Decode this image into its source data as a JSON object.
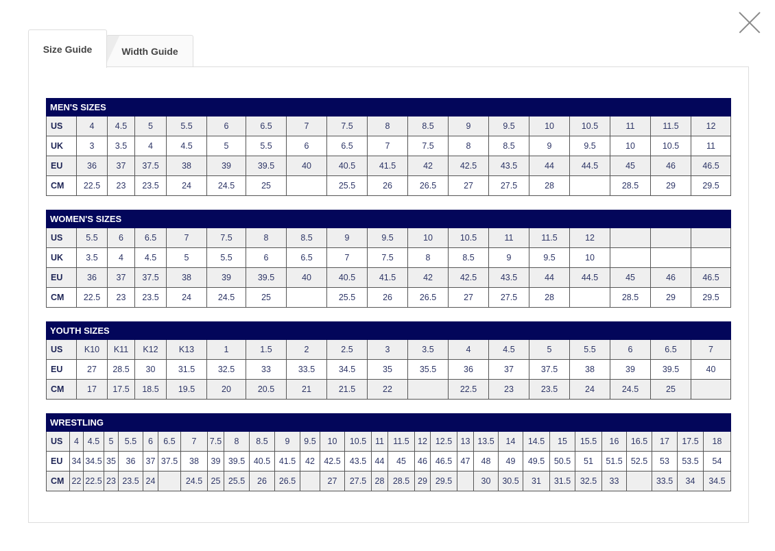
{
  "tabs": [
    {
      "label": "Size Guide",
      "active": true
    },
    {
      "label": "Width Guide",
      "active": false
    }
  ],
  "colors": {
    "header_bg": "#03065a",
    "stripe": "#efefef",
    "text": "#2d3566"
  },
  "tables": [
    {
      "title": "MEN'S SIZES",
      "rows": [
        {
          "label": "US",
          "values": [
            "4",
            "4.5",
            "5",
            "5.5",
            "6",
            "6.5",
            "7",
            "7.5",
            "8",
            "8.5",
            "9",
            "9.5",
            "10",
            "10.5",
            "11",
            "11.5",
            "12"
          ]
        },
        {
          "label": "UK",
          "values": [
            "3",
            "3.5",
            "4",
            "4.5",
            "5",
            "5.5",
            "6",
            "6.5",
            "7",
            "7.5",
            "8",
            "8.5",
            "9",
            "9.5",
            "10",
            "10.5",
            "11"
          ]
        },
        {
          "label": "EU",
          "values": [
            "36",
            "37",
            "37.5",
            "38",
            "39",
            "39.5",
            "40",
            "40.5",
            "41.5",
            "42",
            "42.5",
            "43.5",
            "44",
            "44.5",
            "45",
            "46",
            "46.5"
          ]
        },
        {
          "label": "CM",
          "values": [
            "22.5",
            "23",
            "23.5",
            "24",
            "24.5",
            "25",
            "",
            "25.5",
            "26",
            "26.5",
            "27",
            "27.5",
            "28",
            "",
            "28.5",
            "29",
            "29.5"
          ]
        }
      ]
    },
    {
      "title": "WOMEN'S SIZES",
      "rows": [
        {
          "label": "US",
          "values": [
            "5.5",
            "6",
            "6.5",
            "7",
            "7.5",
            "8",
            "8.5",
            "9",
            "9.5",
            "10",
            "10.5",
            "11",
            "11.5",
            "12",
            "",
            "",
            ""
          ]
        },
        {
          "label": "UK",
          "values": [
            "3.5",
            "4",
            "4.5",
            "5",
            "5.5",
            "6",
            "6.5",
            "7",
            "7.5",
            "8",
            "8.5",
            "9",
            "9.5",
            "10",
            "",
            "",
            ""
          ]
        },
        {
          "label": "EU",
          "values": [
            "36",
            "37",
            "37.5",
            "38",
            "39",
            "39.5",
            "40",
            "40.5",
            "41.5",
            "42",
            "42.5",
            "43.5",
            "44",
            "44.5",
            "45",
            "46",
            "46.5"
          ]
        },
        {
          "label": "CM",
          "values": [
            "22.5",
            "23",
            "23.5",
            "24",
            "24.5",
            "25",
            "",
            "25.5",
            "26",
            "26.5",
            "27",
            "27.5",
            "28",
            "",
            "28.5",
            "29",
            "29.5"
          ]
        }
      ]
    },
    {
      "title": "YOUTH SIZES",
      "rows": [
        {
          "label": "US",
          "values": [
            "K10",
            "K11",
            "K12",
            "K13",
            "1",
            "1.5",
            "2",
            "2.5",
            "3",
            "3.5",
            "4",
            "4.5",
            "5",
            "5.5",
            "6",
            "6.5",
            "7"
          ]
        },
        {
          "label": "EU",
          "values": [
            "27",
            "28.5",
            "30",
            "31.5",
            "32.5",
            "33",
            "33.5",
            "34.5",
            "35",
            "35.5",
            "36",
            "37",
            "37.5",
            "38",
            "39",
            "39.5",
            "40"
          ]
        },
        {
          "label": "CM",
          "values": [
            "17",
            "17.5",
            "18.5",
            "19.5",
            "20",
            "20.5",
            "21",
            "21.5",
            "22",
            "",
            "22.5",
            "23",
            "23.5",
            "24",
            "24.5",
            "25",
            ""
          ]
        }
      ]
    },
    {
      "title": "WRESTLING",
      "rows": [
        {
          "label": "US",
          "values": [
            "4",
            "4.5",
            "5",
            "5.5",
            "6",
            "6.5",
            "7",
            "7.5",
            "8",
            "8.5",
            "9",
            "9.5",
            "10",
            "10.5",
            "11",
            "11.5",
            "12",
            "12.5",
            "13",
            "13.5",
            "14",
            "14.5",
            "15",
            "15.5",
            "16",
            "16.5",
            "17",
            "17.5",
            "18"
          ]
        },
        {
          "label": "EU",
          "values": [
            "34",
            "34.5",
            "35",
            "36",
            "37",
            "37.5",
            "38",
            "39",
            "39.5",
            "40.5",
            "41.5",
            "42",
            "42.5",
            "43.5",
            "44",
            "45",
            "46",
            "46.5",
            "47",
            "48",
            "49",
            "49.5",
            "50.5",
            "51",
            "51.5",
            "52.5",
            "53",
            "53.5",
            "54"
          ]
        },
        {
          "label": "CM",
          "values": [
            "22",
            "22.5",
            "23",
            "23.5",
            "24",
            "",
            "24.5",
            "25",
            "25.5",
            "26",
            "26.5",
            "",
            "27",
            "27.5",
            "28",
            "28.5",
            "29",
            "29.5",
            "",
            "30",
            "30.5",
            "31",
            "31.5",
            "32.5",
            "33",
            "",
            "33.5",
            "34",
            "34.5"
          ]
        }
      ]
    }
  ]
}
